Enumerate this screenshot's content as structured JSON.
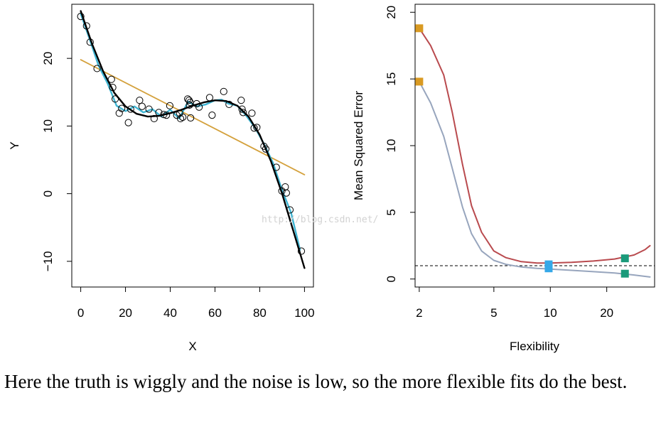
{
  "chart_data": [
    {
      "type": "scatter",
      "xlabel": "X",
      "ylabel": "Y",
      "xlim": [
        -4,
        104
      ],
      "ylim": [
        -13.8,
        28
      ],
      "xticks": [
        0,
        20,
        40,
        60,
        80,
        100
      ],
      "yticks": [
        -10,
        0,
        10,
        20
      ],
      "points": [
        [
          0,
          26.2
        ],
        [
          2.6,
          24.8
        ],
        [
          4.2,
          22.4
        ],
        [
          7.3,
          18.5
        ],
        [
          13.7,
          16.9
        ],
        [
          14.3,
          15.7
        ],
        [
          15.4,
          14.0
        ],
        [
          17.2,
          11.9
        ],
        [
          18.3,
          12.6
        ],
        [
          21.3,
          10.5
        ],
        [
          22.3,
          12.5
        ],
        [
          26.3,
          13.8
        ],
        [
          27.4,
          12.9
        ],
        [
          30.5,
          12.5
        ],
        [
          32.8,
          11.1
        ],
        [
          34.9,
          12.0
        ],
        [
          37.1,
          11.7
        ],
        [
          38.3,
          11.6
        ],
        [
          39.8,
          13.0
        ],
        [
          42.9,
          11.6
        ],
        [
          44.2,
          11.9
        ],
        [
          44.6,
          11.1
        ],
        [
          45.6,
          11.3
        ],
        [
          47.8,
          14.0
        ],
        [
          48.4,
          13.8
        ],
        [
          48.9,
          13.5
        ],
        [
          48.6,
          13.1
        ],
        [
          49.1,
          11.2
        ],
        [
          51.8,
          13.3
        ],
        [
          52.9,
          12.8
        ],
        [
          57.6,
          14.2
        ],
        [
          58.7,
          11.6
        ],
        [
          63.9,
          15.1
        ],
        [
          66.3,
          13.2
        ],
        [
          71.7,
          13.8
        ],
        [
          72.1,
          12.5
        ],
        [
          72.6,
          12.0
        ],
        [
          76.5,
          11.9
        ],
        [
          77.5,
          9.7
        ],
        [
          78.7,
          9.8
        ],
        [
          81.9,
          7.0
        ],
        [
          82.7,
          6.6
        ],
        [
          87.4,
          3.9
        ],
        [
          89.9,
          0.4
        ],
        [
          91.4,
          1.0
        ],
        [
          91.9,
          0.1
        ],
        [
          93.5,
          -2.4
        ],
        [
          98.6,
          -8.5
        ]
      ],
      "series": [
        {
          "color": "#000000",
          "x": [
            0,
            5,
            10,
            15,
            20,
            25,
            30,
            35,
            40,
            45,
            50,
            55,
            60,
            65,
            70,
            75,
            80,
            85,
            90,
            95,
            100
          ],
          "y": [
            27,
            22.2,
            18.1,
            14.9,
            12.9,
            11.8,
            11.4,
            11.5,
            11.9,
            12.4,
            13.0,
            13.5,
            13.8,
            13.7,
            13.0,
            11.4,
            8.7,
            4.8,
            0.0,
            -5.5,
            -11.0
          ]
        },
        {
          "color": "#3fb5d3",
          "x": [
            0,
            4,
            8,
            12,
            16,
            20,
            24,
            28,
            32,
            36,
            40,
            44,
            48,
            52,
            56,
            60,
            63,
            66,
            70,
            74,
            78,
            82,
            86,
            90,
            94,
            98
          ],
          "y": [
            26.6,
            22.8,
            18.9,
            16.3,
            13.0,
            12.2,
            12.9,
            12.0,
            12.5,
            11.4,
            12.4,
            11.1,
            13.6,
            12.9,
            13.2,
            13.8,
            13.9,
            13.3,
            13.0,
            11.5,
            9.7,
            7.3,
            4.5,
            0.5,
            -2.8,
            -8.3
          ]
        },
        {
          "color": "#d4a13c",
          "x": [
            0,
            100
          ],
          "y": [
            19.8,
            2.8
          ]
        }
      ]
    },
    {
      "type": "line",
      "xlabel": "Flexibility",
      "ylabel": "Mean Squared Error",
      "x_scale": "log",
      "xlim": [
        1.9,
        36
      ],
      "ylim": [
        -0.6,
        20.6
      ],
      "xticks": [
        2,
        5,
        10,
        20
      ],
      "yticks": [
        0,
        5,
        10,
        15,
        20
      ],
      "hline": 1.0,
      "series": [
        {
          "color": "#b94a4e",
          "x": [
            2,
            2.3,
            2.7,
            3,
            3.4,
            3.8,
            4.3,
            5,
            5.8,
            7,
            8.5,
            10,
            13,
            17,
            22,
            28,
            32,
            34
          ],
          "y": [
            18.8,
            17.5,
            15.3,
            12.5,
            8.6,
            5.5,
            3.5,
            2.1,
            1.6,
            1.3,
            1.2,
            1.2,
            1.25,
            1.35,
            1.5,
            1.8,
            2.2,
            2.5
          ]
        },
        {
          "color": "#97a5bd",
          "x": [
            2,
            2.3,
            2.7,
            3,
            3.4,
            3.8,
            4.3,
            5,
            5.8,
            7,
            8.5,
            10,
            13,
            17,
            22,
            28,
            34
          ],
          "y": [
            14.8,
            13.2,
            10.7,
            8.3,
            5.4,
            3.4,
            2.1,
            1.4,
            1.1,
            0.9,
            0.8,
            0.75,
            0.65,
            0.55,
            0.45,
            0.3,
            0.15
          ]
        }
      ],
      "markers": [
        {
          "x": 2,
          "y": 18.8,
          "color": "#d99a22"
        },
        {
          "x": 2,
          "y": 14.8,
          "color": "#d99a22"
        },
        {
          "x": 9.8,
          "y": 1.1,
          "color": "#35a8e8"
        },
        {
          "x": 9.8,
          "y": 0.8,
          "color": "#35a8e8"
        },
        {
          "x": 25,
          "y": 1.55,
          "color": "#1a9a7a"
        },
        {
          "x": 25,
          "y": 0.4,
          "color": "#1a9a7a"
        }
      ]
    }
  ],
  "watermark": "http://blog.csdn.net/",
  "caption": "Here the truth is wiggly and the noise is low, so the more flexible fits do the best."
}
